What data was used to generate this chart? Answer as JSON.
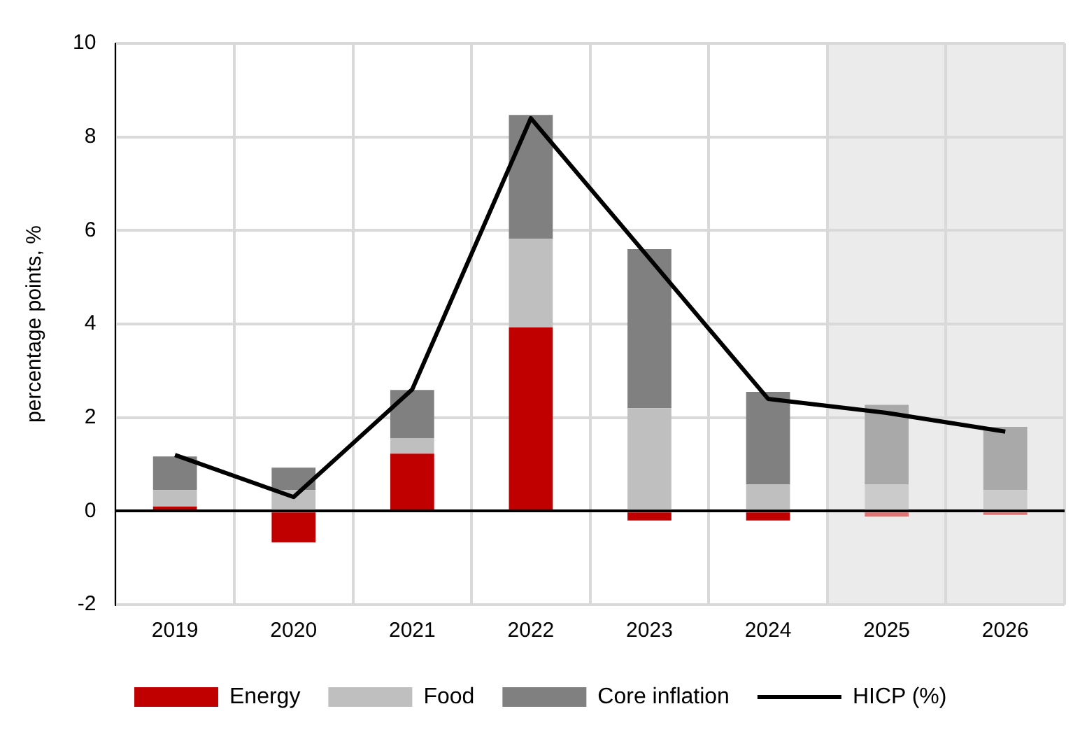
{
  "chart_data": {
    "type": "bar",
    "stacked": true,
    "ylabel": "percentage points, %",
    "categories": [
      "2019",
      "2020",
      "2021",
      "2022",
      "2023",
      "2024",
      "2025",
      "2026"
    ],
    "series": [
      {
        "name": "Energy",
        "color": "#c00000",
        "colors": [
          "#c00000",
          "#c00000",
          "#c00000",
          "#c00000",
          "#c00000",
          "#c00000",
          "#e07373",
          "#e07373"
        ],
        "values": [
          0.1,
          -0.67,
          1.23,
          3.93,
          -0.2,
          -0.2,
          -0.12,
          -0.08
        ]
      },
      {
        "name": "Food",
        "color": "#bfbfbf",
        "colors": [
          "#bfbfbf",
          "#bfbfbf",
          "#bfbfbf",
          "#bfbfbf",
          "#bfbfbf",
          "#bfbfbf",
          "#cbcbcb",
          "#cbcbcb"
        ],
        "values": [
          0.35,
          0.45,
          0.33,
          1.89,
          2.2,
          0.57,
          0.57,
          0.45
        ]
      },
      {
        "name": "Core inflation",
        "color": "#808080",
        "colors": [
          "#808080",
          "#808080",
          "#808080",
          "#808080",
          "#808080",
          "#808080",
          "#a9a9a9",
          "#a9a9a9"
        ],
        "values": [
          0.72,
          0.48,
          1.03,
          2.65,
          3.4,
          1.98,
          1.7,
          1.35
        ]
      },
      {
        "name": "HICP (%)",
        "type": "line",
        "color": "#000000",
        "values": [
          1.2,
          0.3,
          2.6,
          8.4,
          5.4,
          2.4,
          2.1,
          1.7
        ]
      }
    ],
    "bands": [
      {
        "axis": "x",
        "from": "2025",
        "to": "2026",
        "color": "#ebebeb"
      }
    ],
    "ylim": [
      -2,
      10
    ],
    "yticks": [
      -2,
      0,
      2,
      4,
      6,
      8,
      10
    ],
    "grid": true,
    "legend": "bottom",
    "marker": "none"
  }
}
